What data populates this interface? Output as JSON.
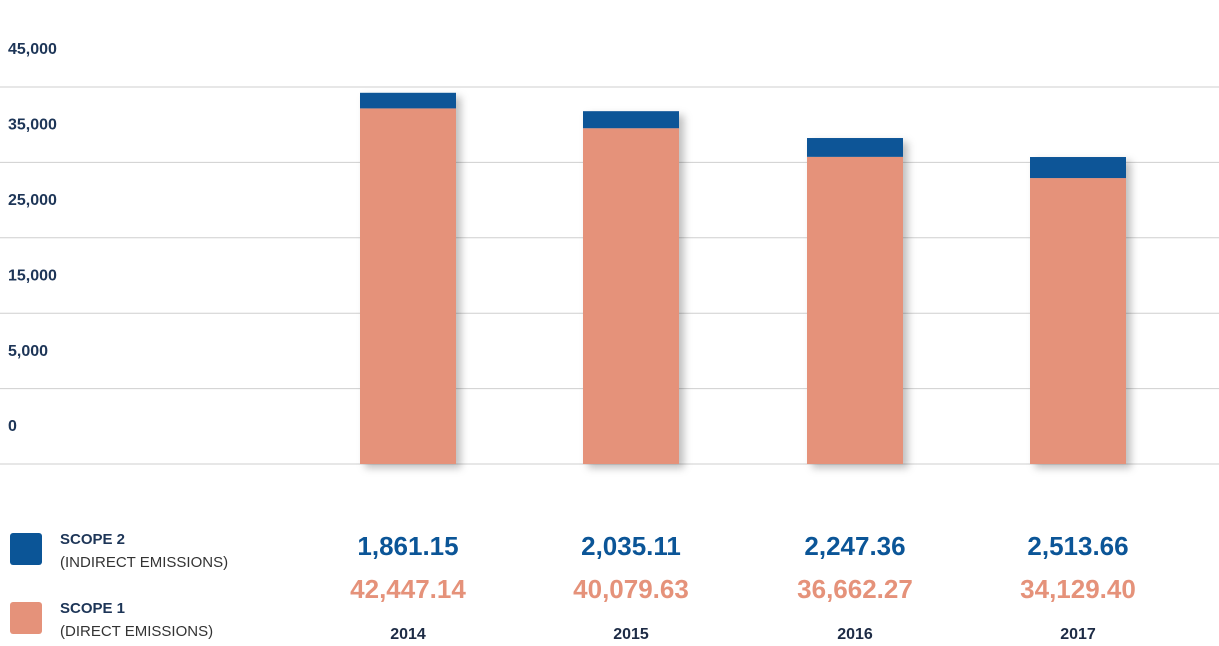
{
  "chart_data": {
    "type": "stacked_bar",
    "categories": [
      "2014",
      "2015",
      "2016",
      "2017"
    ],
    "series": [
      {
        "name": "SCOPE 1",
        "description": "(DIRECT EMISSIONS)",
        "color": "#e5927a",
        "values": [
          42447.14,
          40079.63,
          36662.27,
          34129.4
        ],
        "value_labels": [
          "42,447.14",
          "40,079.63",
          "36,662.27",
          "34,129.40"
        ]
      },
      {
        "name": "SCOPE 2",
        "description": "(INDIRECT EMISSIONS)",
        "color": "#0b5597",
        "values": [
          1861.15,
          2035.11,
          2247.36,
          2513.66
        ],
        "value_labels": [
          "1,861.15",
          "2,035.11",
          "2,247.36",
          "2,513.66"
        ]
      }
    ],
    "ylim": [
      0,
      45000
    ],
    "yticks": [
      {
        "value": 0,
        "label": "0"
      },
      {
        "value": 5000,
        "label": "5,000"
      },
      {
        "value": 15000,
        "label": "15,000"
      },
      {
        "value": 25000,
        "label": "25,000"
      },
      {
        "value": 35000,
        "label": "35,000"
      },
      {
        "value": 45000,
        "label": "45,000"
      }
    ],
    "grid": true
  }
}
